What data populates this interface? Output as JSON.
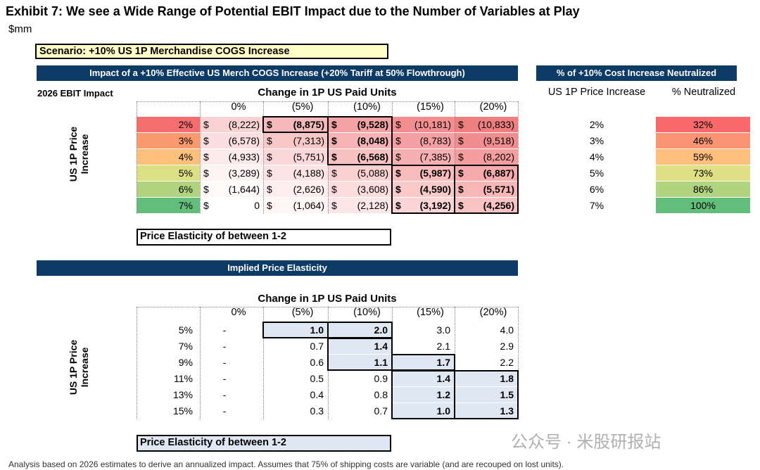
{
  "title": "Exhibit 7: We see a Wide Range of Potential EBIT Impact due to the Number of Variables at Play",
  "units": "$mm",
  "scenario": "Scenario: +10% US 1P Merchandise COGS Increase",
  "impact_table": {
    "header": "Impact of a +10% Effective US Merch COGS  Increase (+20% Tariff at 50% Flowthrough)",
    "corner_label": "2026 EBIT Impact",
    "column_title": "Change in 1P US Paid Units",
    "row_title": "US 1P Price Increase",
    "columns": [
      "0%",
      "(5%)",
      "(10%)",
      "(15%)",
      "(20%)"
    ],
    "rows": [
      {
        "label": "2%",
        "values": [
          "(8,222)",
          "(8,875)",
          "(9,528)",
          "(10,181)",
          "(10,833)"
        ]
      },
      {
        "label": "3%",
        "values": [
          "(6,578)",
          "(7,313)",
          "(8,048)",
          "(8,783)",
          "(9,518)"
        ]
      },
      {
        "label": "4%",
        "values": [
          "(4,933)",
          "(5,751)",
          "(6,568)",
          "(7,385)",
          "(8,202)"
        ]
      },
      {
        "label": "5%",
        "values": [
          "(3,289)",
          "(4,188)",
          "(5,088)",
          "(5,987)",
          "(6,887)"
        ]
      },
      {
        "label": "6%",
        "values": [
          "(1,644)",
          "(2,626)",
          "(3,608)",
          "(4,590)",
          "(5,571)"
        ]
      },
      {
        "label": "7%",
        "values": [
          "0",
          "(1,064)",
          "(2,128)",
          "(3,192)",
          "(4,256)"
        ]
      }
    ],
    "bold_cells": [
      [
        0,
        1
      ],
      [
        0,
        2
      ],
      [
        1,
        2
      ],
      [
        2,
        2
      ],
      [
        3,
        3
      ],
      [
        3,
        4
      ],
      [
        4,
        3
      ],
      [
        4,
        4
      ],
      [
        5,
        3
      ],
      [
        5,
        4
      ]
    ],
    "currency": "$",
    "elasticity_note": "Price Elasticity of between 1-2"
  },
  "neutralized_table": {
    "header": "% of +10% Cost Increase Neutralized",
    "col1_title": "US 1P Price Increase",
    "col2_title": "% Neutralized",
    "rows": [
      {
        "price": "2%",
        "neutralized": "32%",
        "color": "#f8696b"
      },
      {
        "price": "3%",
        "neutralized": "46%",
        "color": "#fa9473"
      },
      {
        "price": "4%",
        "neutralized": "59%",
        "color": "#fdbf7b"
      },
      {
        "price": "5%",
        "neutralized": "73%",
        "color": "#dfe083"
      },
      {
        "price": "6%",
        "neutralized": "86%",
        "color": "#b1d47f"
      },
      {
        "price": "7%",
        "neutralized": "100%",
        "color": "#63be7b"
      }
    ]
  },
  "elasticity_table": {
    "header": "Implied Price Elasticity",
    "column_title": "Change in 1P US Paid Units",
    "row_title": "US 1P Price Increase",
    "columns": [
      "0%",
      "(5%)",
      "(10%)",
      "(15%)",
      "(20%)"
    ],
    "rows": [
      {
        "label": "5%",
        "values": [
          "-",
          "1.0",
          "2.0",
          "3.0",
          "4.0"
        ]
      },
      {
        "label": "7%",
        "values": [
          "-",
          "0.7",
          "1.4",
          "2.1",
          "2.9"
        ]
      },
      {
        "label": "9%",
        "values": [
          "-",
          "0.6",
          "1.1",
          "1.7",
          "2.2"
        ]
      },
      {
        "label": "11%",
        "values": [
          "-",
          "0.5",
          "0.9",
          "1.4",
          "1.8"
        ]
      },
      {
        "label": "13%",
        "values": [
          "-",
          "0.4",
          "0.8",
          "1.2",
          "1.5"
        ]
      },
      {
        "label": "15%",
        "values": [
          "-",
          "0.3",
          "0.7",
          "1.0",
          "1.3"
        ]
      }
    ],
    "elasticity_note": "Price Elasticity of between 1-2"
  },
  "footnote": "Analysis based on 2026 estimates to derive an annualized impact. Assumes that 75% of shipping costs are variable (and are recouped on lost units).",
  "watermark": "公众号 · 米股研报站",
  "colors": {
    "navy": "#0e3b66",
    "scenario_fill": "#ffffc8",
    "elasticity_highlight": "#dfe7f2",
    "row_label_fills": [
      "#f46d6f",
      "#f8996e",
      "#fcc07a",
      "#dcdf83",
      "#afd37e",
      "#63be7b"
    ]
  }
}
